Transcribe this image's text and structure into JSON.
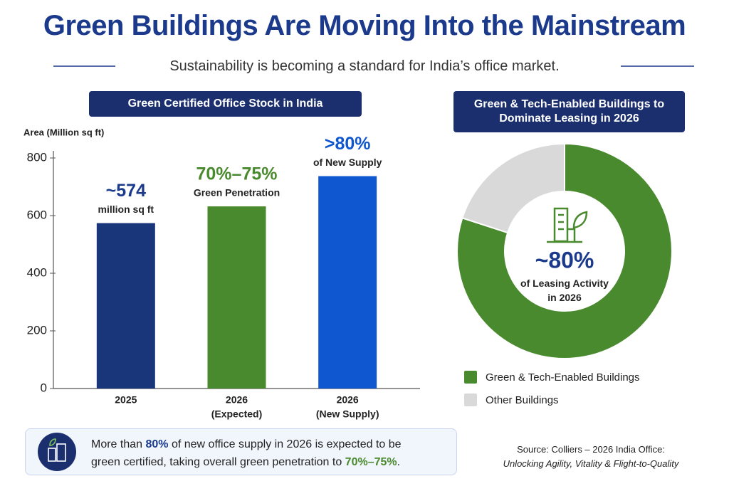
{
  "header": {
    "title": "Green Buildings Are Moving Into the Mainstream",
    "subtitle": "Sustainability is becoming a standard for India’s office market."
  },
  "chart_data": [
    {
      "type": "bar",
      "title": "Green Certified Office Stock in India",
      "y_label": "Area (Million sq ft)",
      "categories": [
        [
          "2025"
        ],
        [
          "2026",
          "(Expected)"
        ],
        [
          "2026",
          "(New Supply)"
        ]
      ],
      "values": [
        574,
        632,
        737
      ],
      "colors": [
        "#1a367a",
        "#4a8a2e",
        "#0f57d0"
      ],
      "annotations": [
        {
          "headline": "~574",
          "sub": "million sq ft"
        },
        {
          "headline": "70%–75%",
          "sub": "Green Penetration"
        },
        {
          "headline": ">80%",
          "sub": "of New Supply"
        }
      ],
      "annotation_colors": [
        "#1b3a8c",
        "#4a8a2e",
        "#0f57d0"
      ],
      "ylim": [
        0,
        800
      ],
      "yticks": [
        0,
        200,
        400,
        600,
        800
      ],
      "grid": false
    },
    {
      "type": "donut",
      "title": "Green & Tech-Enabled Buildings to Dominate Leasing in 2026",
      "series": [
        {
          "name": "Green & Tech-Enabled Buildings",
          "color": "#4a8a2e",
          "value": 80
        },
        {
          "name": "Other Buildings",
          "color": "#d9d9d9",
          "value": 20
        }
      ],
      "center_label": "~80%",
      "center_sub": "of Leasing Activity in 2026"
    }
  ],
  "footer": {
    "note": [
      "More than ",
      "80%",
      " of new office supply in 2026 is expected to be green certified, taking overall green penetration to ",
      "70%–75%",
      "."
    ],
    "source": "Source: Colliers – 2026 India Office:",
    "source_title": "Unlocking Agility, Vitality & Flight-to-Quality"
  }
}
